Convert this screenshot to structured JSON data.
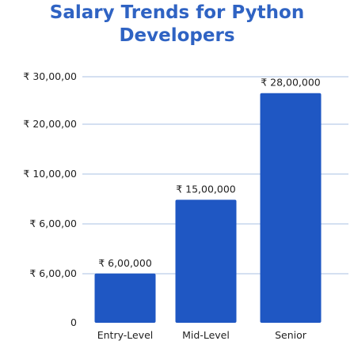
{
  "chart_data": {
    "type": "bar",
    "title_lines": [
      "Salary Trends for Python",
      "Developers"
    ],
    "categories": [
      "Entry-Level",
      "Mid-Level",
      "Senior"
    ],
    "values": [
      600000,
      1500000,
      2800000
    ],
    "value_labels": [
      "₹ 6,00,000",
      "₹ 15,00,000",
      "₹ 28,00,000"
    ],
    "y_tick_labels": [
      "₹ 30,00,00",
      "₹ 20,00,00",
      "₹ 10,00,00",
      "₹ 6,00,00",
      "₹ 6,00,00",
      "0"
    ],
    "ylim": [
      0,
      3000000
    ],
    "grid": true,
    "xlabel": "",
    "ylabel": "",
    "colors": {
      "bar": "#1f57c3",
      "title": "#2f63c3",
      "grid": "#a9c2e3"
    }
  }
}
